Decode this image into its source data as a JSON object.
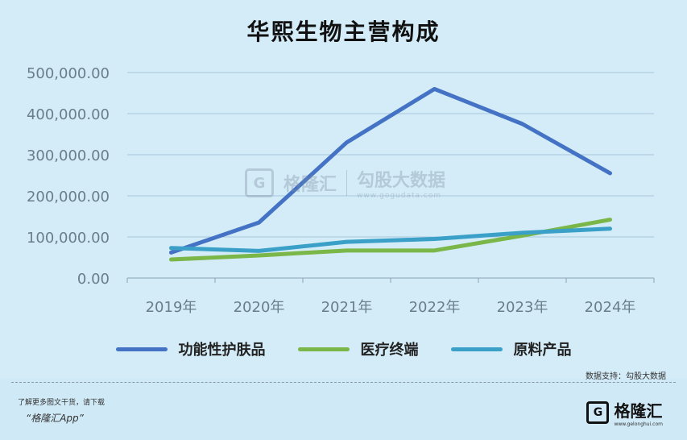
{
  "chart_data": {
    "type": "line",
    "title": "华熙生物主营构成",
    "categories": [
      "2019年",
      "2020年",
      "2021年",
      "2022年",
      "2023年",
      "2024年"
    ],
    "y_ticks": [
      "0.00",
      "100,000.00",
      "200,000.00",
      "300,000.00",
      "400,000.00",
      "500,000.00"
    ],
    "ylim": [
      0,
      500000
    ],
    "grid": true,
    "legend_position": "bottom",
    "series": [
      {
        "name": "功能性护肤品",
        "color": "#4472c4",
        "values": [
          62000,
          135000,
          330000,
          460000,
          375000,
          255000
        ]
      },
      {
        "name": "医疗终端",
        "color": "#7ab648",
        "values": [
          45000,
          55000,
          67000,
          67000,
          103000,
          142000
        ]
      },
      {
        "name": "原料产品",
        "color": "#3aa0c8",
        "values": [
          73000,
          66000,
          88000,
          95000,
          110000,
          120000
        ]
      }
    ]
  },
  "watermark": {
    "logo": "G",
    "brand": "格隆汇",
    "title": "勾股大数据",
    "url": "www.gogudata.com"
  },
  "source": "数据支持：勾股大数据",
  "footer": {
    "note": "了解更多图文干货，请下载",
    "app": "“格隆汇App”",
    "logo_letter": "G",
    "logo_text": "格隆汇",
    "logo_url": "www.gelonghui.com"
  }
}
